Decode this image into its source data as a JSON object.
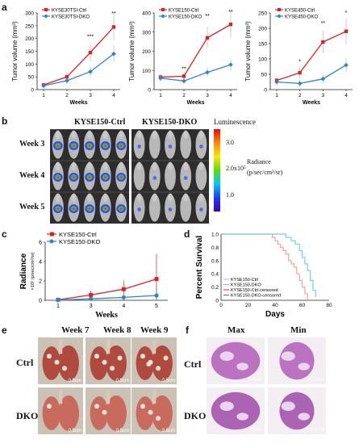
{
  "panels": {
    "a": "a",
    "b": "b",
    "c": "c",
    "d": "d",
    "e": "e",
    "f": "f"
  },
  "colors": {
    "ctrl": "#e02020",
    "dko": "#2a86c8",
    "ctrl_light": "#f4a0a0",
    "dko_light": "#6fd0e8"
  },
  "chart_data": [
    {
      "type": "line",
      "ylabel": "Tumor volume (mm³)",
      "xlabel": "Weeks",
      "ylim": [
        0,
        300
      ],
      "yticks": [
        "0",
        "50",
        "100",
        "150",
        "200",
        "250",
        "300"
      ],
      "x": [
        1,
        2,
        3,
        4
      ],
      "series": [
        {
          "name": "KYSE30TSI-Ctrl",
          "values": [
            18,
            50,
            145,
            245
          ]
        },
        {
          "name": "KYSE30TSI-DKO",
          "values": [
            15,
            35,
            70,
            140
          ]
        }
      ],
      "annotations": [
        "***",
        "**"
      ]
    },
    {
      "type": "line",
      "ylabel": "Tumor volume (mm³)",
      "xlabel": "Weeks",
      "ylim": [
        0,
        400
      ],
      "yticks": [
        "0",
        "100",
        "200",
        "300",
        "400"
      ],
      "x": [
        1,
        2,
        3,
        4
      ],
      "series": [
        {
          "name": "KYSE150-Ctrl",
          "values": [
            65,
            70,
            270,
            340
          ]
        },
        {
          "name": "KYSE150-DKO",
          "values": [
            60,
            45,
            90,
            130
          ]
        }
      ],
      "annotations": [
        "**",
        "**",
        "**"
      ]
    },
    {
      "type": "line",
      "ylabel": "Tumor volume (mm³)",
      "xlabel": "Weeks",
      "ylim": [
        0,
        250
      ],
      "yticks": [
        "0",
        "50",
        "100",
        "150",
        "200",
        "250"
      ],
      "x": [
        1,
        2,
        3,
        4
      ],
      "series": [
        {
          "name": "KYSE450-Ctrl",
          "values": [
            30,
            55,
            155,
            190
          ]
        },
        {
          "name": "KYSE450-DKO",
          "values": [
            25,
            20,
            35,
            80
          ]
        }
      ],
      "annotations": [
        "*",
        "**",
        "*"
      ]
    },
    {
      "type": "line",
      "ylabel": "Radiance",
      "ylabel2": "×10⁵ (p/sec/cm²/sr)",
      "xlabel": "Weeks",
      "ylim": [
        0,
        6
      ],
      "yticks": [
        "0",
        "2",
        "4",
        "6"
      ],
      "xticks": [
        "1",
        "3",
        "4",
        "5"
      ],
      "series": [
        {
          "name": "KYSE150-Ctrl",
          "values": [
            0.05,
            0.55,
            1.15,
            2.2
          ]
        },
        {
          "name": "KYSE150-DKO",
          "values": [
            0.02,
            0.15,
            0.3,
            0.5
          ]
        }
      ]
    },
    {
      "type": "line",
      "ylabel": "Percent Survival",
      "xlabel": "Days",
      "ylim": [
        0,
        1
      ],
      "yticks": [
        "0",
        "0.2",
        "0.4",
        "0.6",
        "0.8",
        "1.0"
      ],
      "xticks": [
        "0",
        "20",
        "40",
        "60",
        "80"
      ],
      "legend": [
        "KYSE150-Ctrl",
        "KYSE150-DKO",
        "KYSE150-Ctrl-censored",
        "KYSE150-DKO-censored"
      ],
      "series": [
        {
          "name": "KYSE150-Ctrl",
          "x": [
            0,
            36,
            38,
            40,
            42,
            44,
            46,
            48,
            50,
            52,
            54,
            56,
            58,
            60,
            62,
            64
          ],
          "values": [
            1,
            1,
            0.95,
            0.9,
            0.85,
            0.8,
            0.75,
            0.7,
            0.6,
            0.55,
            0.5,
            0.4,
            0.3,
            0.2,
            0.1,
            0
          ]
        },
        {
          "name": "KYSE150-DKO",
          "x": [
            0,
            44,
            48,
            52,
            55,
            58,
            60,
            62,
            64,
            66,
            68,
            70
          ],
          "values": [
            1,
            1,
            0.95,
            0.9,
            0.85,
            0.75,
            0.65,
            0.55,
            0.45,
            0.3,
            0.15,
            0.05
          ]
        }
      ]
    }
  ],
  "b": {
    "ctrl_label": "KYSE150-Ctrl",
    "dko_label": "KYSE150-DKO",
    "weeks": [
      "Week 3",
      "Week 4",
      "Week 5"
    ],
    "scale_title": "Luminescence",
    "scale_ticks": [
      "3.0",
      "2.0x10⁵",
      "1.0"
    ],
    "radiance_label": "Radiance",
    "radiance_units": "(p/sec/cm²/sr)"
  },
  "e": {
    "weeks": [
      "Week 7",
      "Week 8",
      "Week 9"
    ],
    "rows": [
      "Ctrl",
      "DKO"
    ],
    "scale": "0.5cm"
  },
  "f": {
    "cols": [
      "Max",
      "Min"
    ],
    "rows": [
      "Ctrl",
      "DKO"
    ],
    "scale": "0.5cm"
  }
}
